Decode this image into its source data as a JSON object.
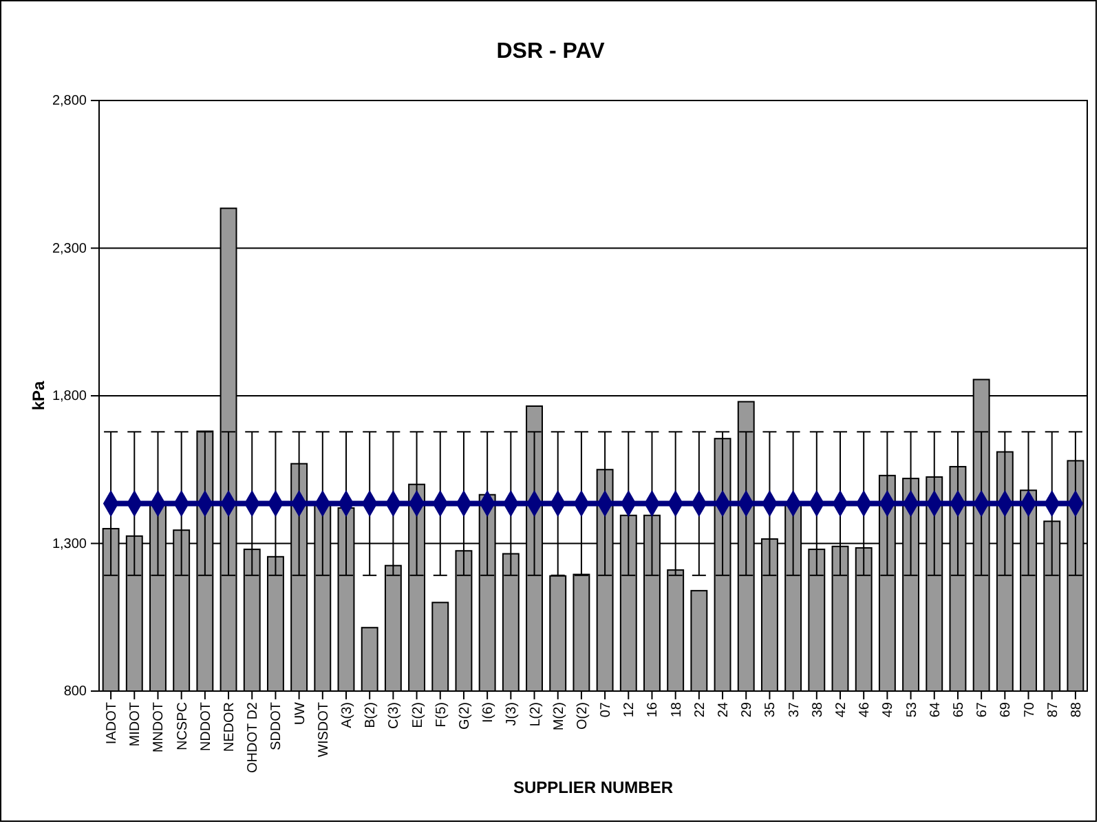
{
  "chart_data": {
    "type": "bar",
    "title": "DSR - PAV",
    "xlabel": "SUPPLIER NUMBER",
    "ylabel": "kPa",
    "categories": [
      "IADOT",
      "MIDOT",
      "MNDOT",
      "NCSPC",
      "NDDOT",
      "NEDOR",
      "OHDOT D2",
      "SDDOT",
      "UW",
      "WISDOT",
      "A(3)",
      "B(2)",
      "C(3)",
      "E(2)",
      "F(5)",
      "G(2)",
      "I(6)",
      "J(3)",
      "L(2)",
      "M(2)",
      "O(2)",
      "07",
      "12",
      "16",
      "18",
      "22",
      "24",
      "29",
      "35",
      "37",
      "38",
      "42",
      "46",
      "49",
      "53",
      "64",
      "65",
      "67",
      "69",
      "70",
      "87",
      "88"
    ],
    "series": [
      {
        "color": "#999999",
        "values": [
          1350,
          1325,
          1430,
          1345,
          1680,
          2435,
          1280,
          1255,
          1570,
          1430,
          1420,
          1015,
          1225,
          1500,
          1100,
          1275,
          1465,
          1265,
          1765,
          1190,
          1195,
          1550,
          1395,
          1395,
          1210,
          1140,
          1655,
          1780,
          1315,
          1430,
          1280,
          1290,
          1285,
          1530,
          1520,
          1525,
          1560,
          1855,
          1610,
          1480,
          1375,
          1580
        ]
      },
      {
        "type": "line",
        "color": "#000080",
        "marker": "diamond",
        "values": [
          1435,
          1435,
          1435,
          1435,
          1435,
          1435,
          1435,
          1435,
          1435,
          1435,
          1435,
          1435,
          1435,
          1435,
          1435,
          1435,
          1435,
          1435,
          1435,
          1435,
          1435,
          1435,
          1435,
          1435,
          1435,
          1435,
          1435,
          1435,
          1435,
          1435,
          1435,
          1435,
          1435,
          1435,
          1435,
          1435,
          1435,
          1435,
          1435,
          1435,
          1435,
          1435
        ],
        "errors": [
          243,
          243,
          243,
          243,
          243,
          243,
          243,
          243,
          243,
          243,
          243,
          243,
          243,
          243,
          243,
          243,
          243,
          243,
          243,
          243,
          243,
          243,
          243,
          243,
          243,
          243,
          243,
          243,
          243,
          243,
          243,
          243,
          243,
          243,
          243,
          243,
          243,
          243,
          243,
          243,
          243,
          243
        ]
      }
    ],
    "ylim": [
      800,
      2800
    ],
    "yticks": [
      {
        "value": 800,
        "label": "800"
      },
      {
        "value": 1300,
        "label": "1,300"
      },
      {
        "value": 1800,
        "label": "1,800"
      },
      {
        "value": 2300,
        "label": "2,300"
      },
      {
        "value": 2800,
        "label": "2,800"
      }
    ],
    "grid": "y"
  }
}
